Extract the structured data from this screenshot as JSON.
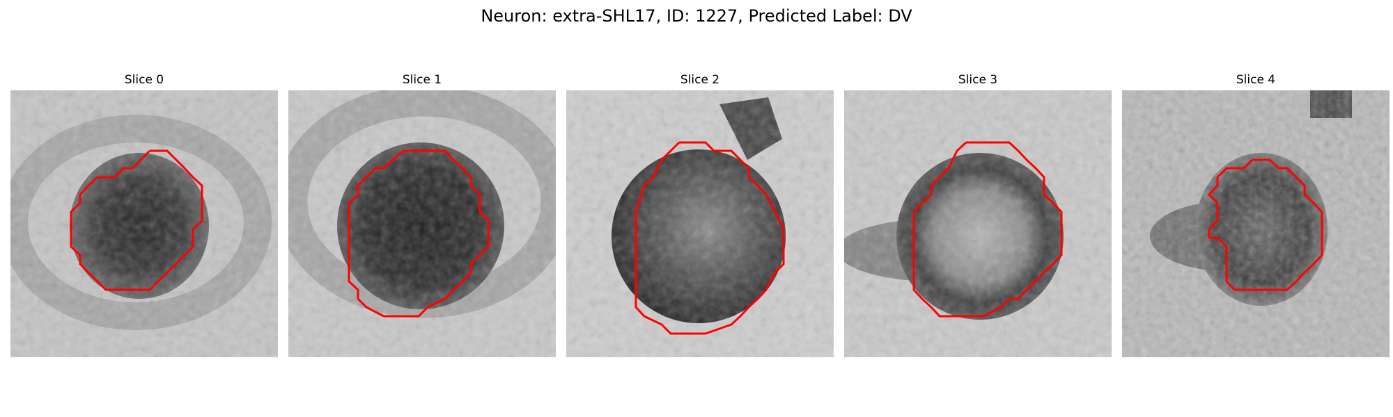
{
  "figure": {
    "title": "Neuron: extra-SHL17, ID: 1227, Predicted Label: DV"
  },
  "panels": [
    {
      "label": "Slice 0"
    },
    {
      "label": "Slice 1"
    },
    {
      "label": "Slice 2"
    },
    {
      "label": "Slice 3"
    },
    {
      "label": "Slice 4"
    }
  ],
  "colors": {
    "contour": "#ff0000",
    "background": "#ffffff"
  }
}
